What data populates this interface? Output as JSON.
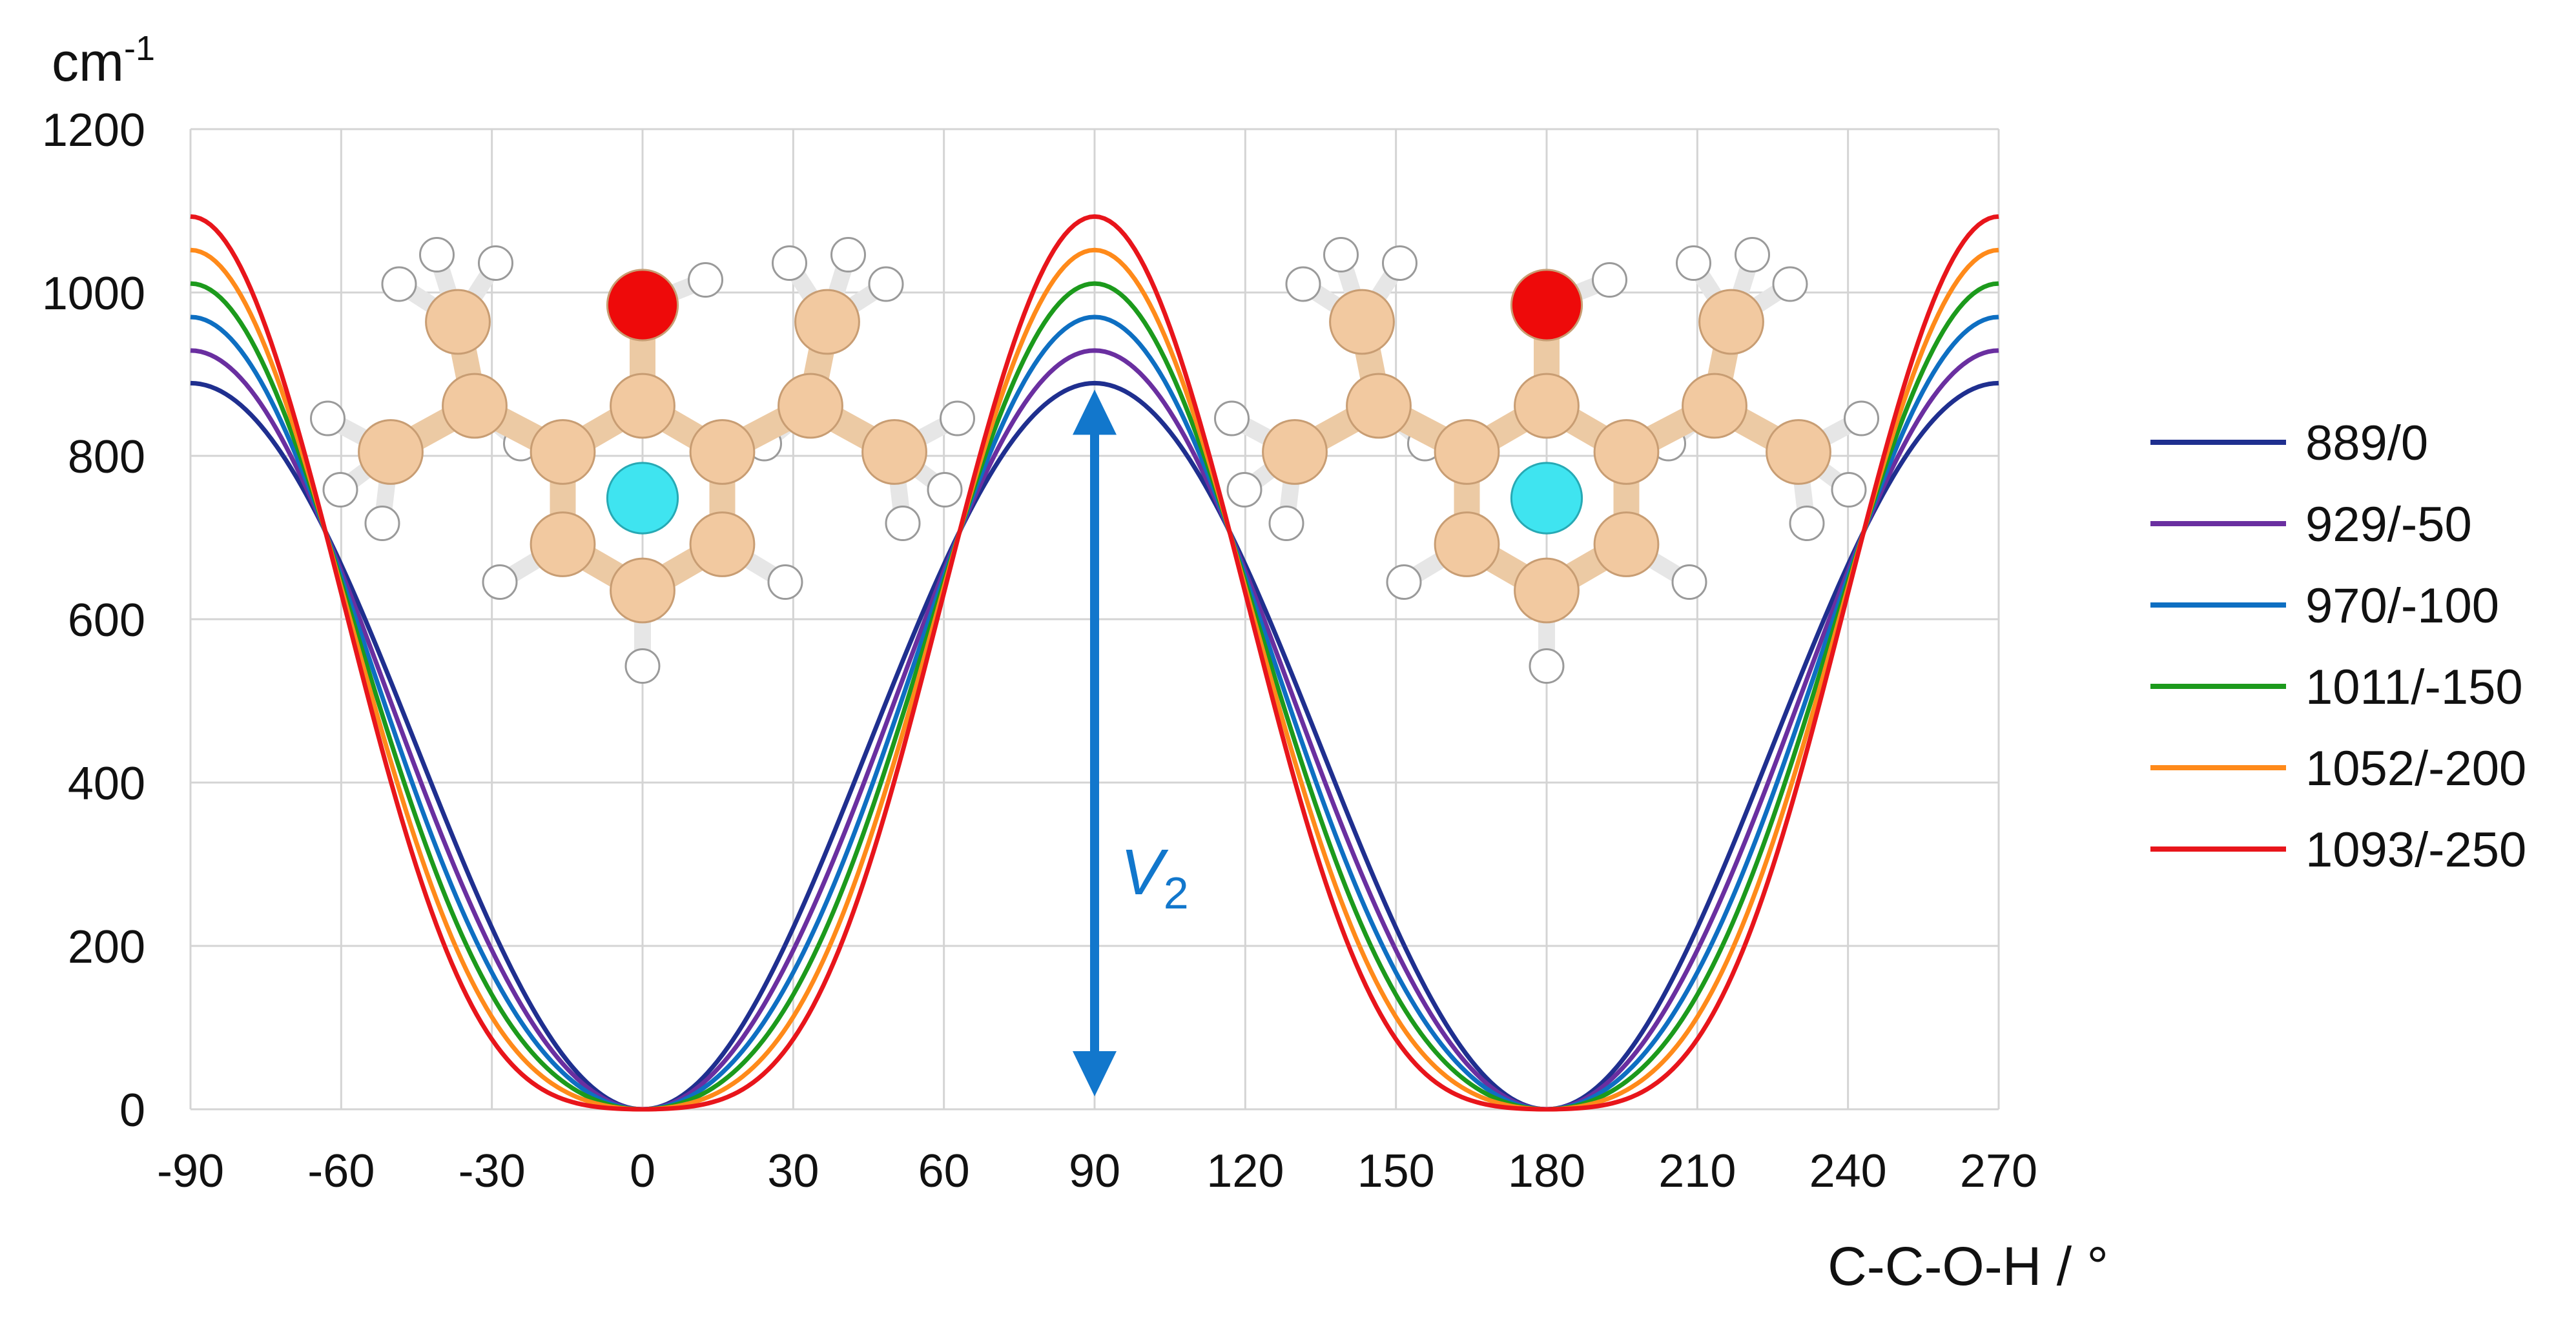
{
  "chart_data": {
    "type": "line",
    "title": "",
    "xlabel": "C-C-O-H / °",
    "ylabel": "cm-1",
    "ylabel_main": "cm",
    "ylabel_sup": "-1",
    "xlim": [
      -90,
      270
    ],
    "ylim": [
      0,
      1200
    ],
    "xticks": [
      "-90",
      "-60",
      "-30",
      "0",
      "30",
      "60",
      "90",
      "120",
      "150",
      "180",
      "210",
      "240",
      "270"
    ],
    "yticks": [
      "0",
      "200",
      "400",
      "600",
      "800",
      "1000",
      "1200"
    ],
    "grid": true,
    "legend_position": "right",
    "model": "V(phi) = V2/2 (1 - cos 2phi) + V4/2 (1 - cos 4phi)",
    "series": [
      {
        "name": "889/0",
        "V2": 889,
        "V4": 0,
        "color": "#1f2f8f"
      },
      {
        "name": "929/-50",
        "V2": 929,
        "V4": -50,
        "color": "#6a2fa0"
      },
      {
        "name": "970/-100",
        "V2": 970,
        "V4": -100,
        "color": "#0e6fc2"
      },
      {
        "name": "1011/-150",
        "V2": 1011,
        "V4": -150,
        "color": "#1c9a1c"
      },
      {
        "name": "1052/-200",
        "V2": 1052,
        "V4": -200,
        "color": "#ff8a1a"
      },
      {
        "name": "1093/-250",
        "V2": 1093,
        "V4": -250,
        "color": "#e8151b"
      }
    ],
    "annotation": {
      "label_main": "V",
      "label_sub": "2",
      "x": 90,
      "y_from": 0,
      "y_to": 889,
      "color": "#1277cc"
    },
    "molecule_images": [
      {
        "name": "phenol-molecule-planar",
        "center_x": 0
      },
      {
        "name": "phenol-molecule-planar",
        "center_x": 180
      }
    ]
  }
}
